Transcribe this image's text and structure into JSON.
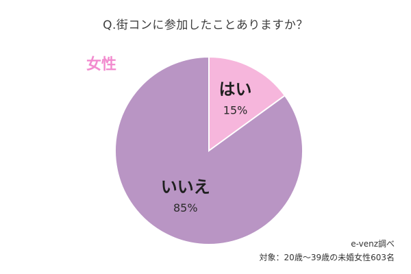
{
  "title": "Q.街コンに参加したことありますか？",
  "segment_label": "女性",
  "source": "e-venz調べ",
  "target_note": "対象：20歳〜39歳の未婚女性603名",
  "chart_data": {
    "type": "pie",
    "title": "Q.街コンに参加したことありますか？",
    "slices": [
      {
        "label": "はい",
        "value": 15,
        "value_label": "15%",
        "color": "#f6b6dc"
      },
      {
        "label": "いいえ",
        "value": 85,
        "value_label": "85%",
        "color": "#b995c4"
      }
    ],
    "start": "12 o'clock",
    "direction": "clockwise",
    "legend": "none",
    "label_color": "#f28ccf"
  }
}
